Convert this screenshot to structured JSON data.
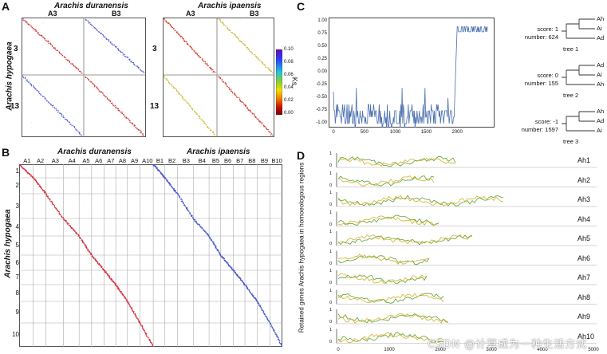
{
  "panel_a": {
    "letter": "A",
    "left_title": "Arachis duranensis",
    "right_title": "Arachis ipaensis",
    "col_labels": [
      "A3",
      "B3"
    ],
    "row_labels": [
      "3",
      "13"
    ],
    "y_title": "Arachis hypogaea",
    "colorbar": {
      "label": "Ks",
      "ticks": [
        "0.10",
        "0.08",
        "0.06",
        "0.04",
        "0.02",
        "0.00"
      ],
      "colors": [
        "#6a0dad",
        "#2a3cff",
        "#20c7d8",
        "#8fd12c",
        "#f2e000",
        "#f08000",
        "#cc1100",
        "#7a0000"
      ]
    }
  },
  "panel_b": {
    "letter": "B",
    "left_title": "Arachis duranensis",
    "right_title": "Arachis ipaensis",
    "y_title": "Arachis hypogaea",
    "col_labels": [
      "A1",
      "A2",
      "A3",
      "A4",
      "A5",
      "A6",
      "A7",
      "A8",
      "A9",
      "A10",
      "B1",
      "B2",
      "B3",
      "B4",
      "B5",
      "B6",
      "B7",
      "B8",
      "B9",
      "B10"
    ],
    "row_labels": [
      "1",
      "2",
      "3",
      "4",
      "5",
      "6",
      "7",
      "8",
      "9",
      "10"
    ]
  },
  "panel_c": {
    "letter": "C",
    "y_ticks": [
      "1.00",
      "0.75",
      "0.50",
      "0.25",
      "0.00",
      "-0.25",
      "-0.50",
      "-0.75",
      "-1.00"
    ],
    "x_ticks": [
      "0",
      "500",
      "1000",
      "1500",
      "2000"
    ],
    "trees": [
      {
        "score": "score: 1",
        "number": "number: 624",
        "name": "tree 1",
        "leaves": [
          "Ah",
          "Ai",
          "Ad"
        ]
      },
      {
        "score": "score: 0",
        "number": "number: 155",
        "name": "tree 2",
        "leaves": [
          "Ad",
          "Ai",
          "Ah"
        ]
      },
      {
        "score": "score: -1",
        "number": "number: 1597",
        "name": "tree 3",
        "leaves": [
          "Ah",
          "Ad",
          "Ai"
        ]
      }
    ]
  },
  "panel_d": {
    "letter": "D",
    "y_title": "Retained genes Arachis hypogaea in homoeologous regions",
    "x_ticks": [
      "0",
      "1000",
      "2000",
      "3000",
      "4000",
      "5000"
    ],
    "rows": [
      {
        "label": "Ah1",
        "len": 0.45
      },
      {
        "label": "Ah2",
        "len": 0.37
      },
      {
        "label": "Ah3",
        "len": 0.63
      },
      {
        "label": "Ah4",
        "len": 0.38
      },
      {
        "label": "Ah5",
        "len": 0.51
      },
      {
        "label": "Ah6",
        "len": 0.35
      },
      {
        "label": "Ah7",
        "len": 0.34
      },
      {
        "label": "Ah8",
        "len": 0.4
      },
      {
        "label": "Ah9",
        "len": 0.42
      },
      {
        "label": "Ah10",
        "len": 0.4
      }
    ],
    "row_ticks": [
      "1",
      "0"
    ]
  },
  "watermark": "CSDN @计算成为一种生活方式"
}
